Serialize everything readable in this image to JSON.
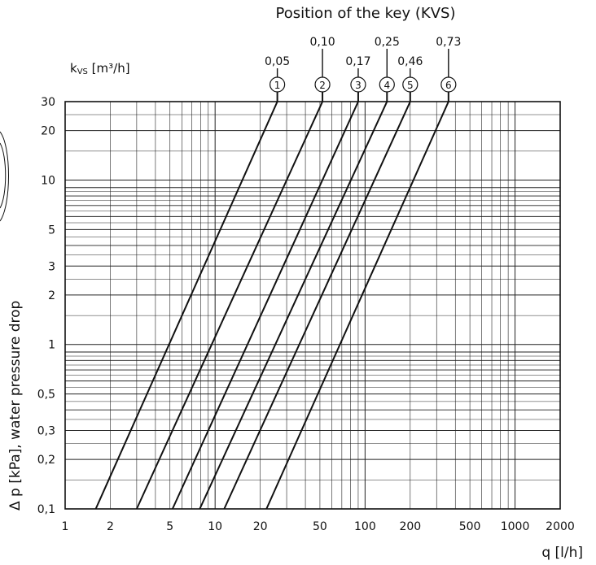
{
  "chart_data": {
    "type": "line",
    "title": "Position of the key (KVS)",
    "xlabel": "q [l/h]",
    "ylabel": "Δ p [kPa], water pressure drop",
    "kvs_label_main": "k",
    "kvs_label_sub": "VS",
    "kvs_label_unit": " [m³/h]",
    "x_scale": "log",
    "y_scale": "log",
    "xlim": [
      1,
      2000
    ],
    "ylim": [
      0.1,
      30
    ],
    "x_ticks": [
      1,
      2,
      5,
      10,
      20,
      50,
      100,
      200,
      500,
      1000,
      2000
    ],
    "x_tick_labels": [
      "1",
      "2",
      "5",
      "10",
      "20",
      "50",
      "100",
      "200",
      "500",
      "1000",
      "2000"
    ],
    "y_ticks": [
      0.1,
      0.2,
      0.3,
      0.5,
      1,
      2,
      3,
      5,
      10,
      20,
      30
    ],
    "y_tick_labels": [
      "0,1",
      "0,2",
      "0,3",
      "0,5",
      "1",
      "2",
      "3",
      "5",
      "10",
      "20",
      "30"
    ],
    "grid": true,
    "series": [
      {
        "name": "1",
        "kvs": "0,05",
        "points": [
          [
            1.6,
            0.1
          ],
          [
            26,
            30
          ]
        ]
      },
      {
        "name": "2",
        "kvs": "0,10",
        "points": [
          [
            3,
            0.1
          ],
          [
            52,
            30
          ]
        ]
      },
      {
        "name": "3",
        "kvs": "0,17",
        "points": [
          [
            5.2,
            0.1
          ],
          [
            90,
            30
          ]
        ]
      },
      {
        "name": "4",
        "kvs": "0,25",
        "points": [
          [
            7.9,
            0.1
          ],
          [
            140,
            30
          ]
        ]
      },
      {
        "name": "5",
        "kvs": "0,46",
        "points": [
          [
            11.5,
            0.1
          ],
          [
            200,
            30
          ]
        ]
      },
      {
        "name": "6",
        "kvs": "0,73",
        "points": [
          [
            22,
            0.1
          ],
          [
            360,
            30
          ]
        ]
      }
    ]
  }
}
